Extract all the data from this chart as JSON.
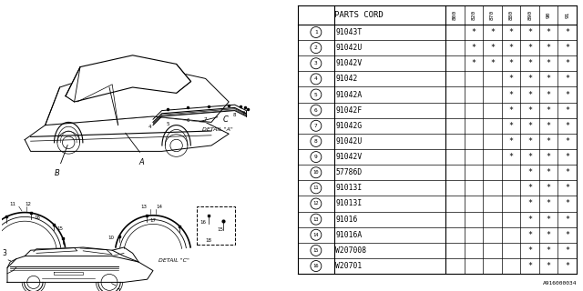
{
  "diagram_code": "A916000034",
  "bg_color": "#ffffff",
  "parts": [
    {
      "num": 1,
      "code": "91043T",
      "cols": [
        false,
        true,
        true,
        true,
        true,
        true,
        true
      ]
    },
    {
      "num": 2,
      "code": "91042U",
      "cols": [
        false,
        true,
        true,
        true,
        true,
        true,
        true
      ]
    },
    {
      "num": 3,
      "code": "91042V",
      "cols": [
        false,
        true,
        true,
        true,
        true,
        true,
        true
      ]
    },
    {
      "num": 4,
      "code": "91042",
      "cols": [
        false,
        false,
        false,
        true,
        true,
        true,
        true
      ]
    },
    {
      "num": 5,
      "code": "91042A",
      "cols": [
        false,
        false,
        false,
        true,
        true,
        true,
        true
      ]
    },
    {
      "num": 6,
      "code": "91042F",
      "cols": [
        false,
        false,
        false,
        true,
        true,
        true,
        true
      ]
    },
    {
      "num": 7,
      "code": "91042G",
      "cols": [
        false,
        false,
        false,
        true,
        true,
        true,
        true
      ]
    },
    {
      "num": 8,
      "code": "91042U",
      "cols": [
        false,
        false,
        false,
        true,
        true,
        true,
        true
      ]
    },
    {
      "num": 9,
      "code": "91042V",
      "cols": [
        false,
        false,
        false,
        true,
        true,
        true,
        true
      ]
    },
    {
      "num": 10,
      "code": "57786D",
      "cols": [
        false,
        false,
        false,
        false,
        true,
        true,
        true
      ]
    },
    {
      "num": 11,
      "code": "91013I",
      "cols": [
        false,
        false,
        false,
        false,
        true,
        true,
        true
      ]
    },
    {
      "num": 12,
      "code": "91013I",
      "cols": [
        false,
        false,
        false,
        false,
        true,
        true,
        true
      ]
    },
    {
      "num": 13,
      "code": "91016",
      "cols": [
        false,
        false,
        false,
        false,
        true,
        true,
        true
      ]
    },
    {
      "num": 14,
      "code": "91016A",
      "cols": [
        false,
        false,
        false,
        false,
        true,
        true,
        true
      ]
    },
    {
      "num": 15,
      "code": "W207008",
      "cols": [
        false,
        false,
        false,
        false,
        true,
        true,
        true
      ]
    },
    {
      "num": 16,
      "code": "W20701",
      "cols": [
        false,
        false,
        false,
        false,
        true,
        true,
        true
      ]
    }
  ],
  "col_headers": [
    "800",
    "820",
    "870",
    "880",
    "890",
    "90",
    "91"
  ],
  "header_label": "PARTS CORD",
  "line_color": "#000000",
  "text_color": "#000000"
}
